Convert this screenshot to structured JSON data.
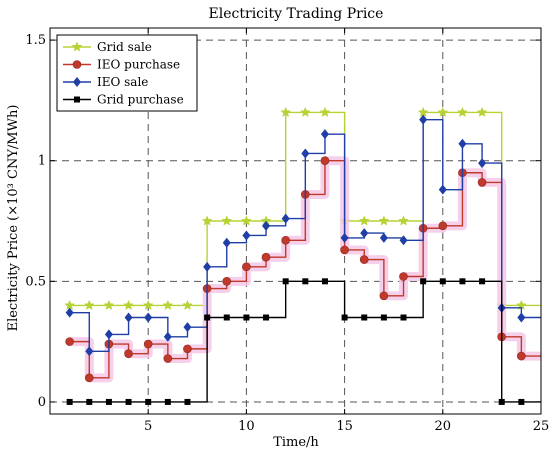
{
  "chart_data": {
    "type": "line",
    "step": true,
    "title": "Electricity Trading Price",
    "xlabel": "Time/h",
    "ylabel": "Electricity Price (×10³ CNY/MWh)",
    "xlim": [
      0,
      25
    ],
    "ylim": [
      -0.05,
      1.55
    ],
    "xticks": [
      5,
      10,
      15,
      20,
      25
    ],
    "yticks": [
      0,
      0.5,
      1,
      1.5
    ],
    "ytick_labels": [
      "0",
      "0.5",
      "1",
      "1.5"
    ],
    "grid": true,
    "legend_position": "top-left",
    "x": [
      1,
      2,
      3,
      4,
      5,
      6,
      7,
      8,
      9,
      10,
      11,
      12,
      13,
      14,
      15,
      16,
      17,
      18,
      19,
      20,
      21,
      22,
      23,
      24
    ],
    "series": [
      {
        "name": "Grid sale",
        "color": "#b5d334",
        "marker": "star",
        "values": [
          0.4,
          0.4,
          0.4,
          0.4,
          0.4,
          0.4,
          0.4,
          0.75,
          0.75,
          0.75,
          0.75,
          1.2,
          1.2,
          1.2,
          0.75,
          0.75,
          0.75,
          0.75,
          1.2,
          1.2,
          1.2,
          1.2,
          0.4,
          0.4
        ]
      },
      {
        "name": "IEO purchase",
        "color": "#c0392b",
        "marker": "circle",
        "values": [
          0.25,
          0.1,
          0.24,
          0.2,
          0.24,
          0.18,
          0.22,
          0.47,
          0.5,
          0.56,
          0.6,
          0.67,
          0.86,
          1.0,
          0.63,
          0.59,
          0.44,
          0.52,
          0.72,
          0.73,
          0.95,
          0.91,
          0.27,
          0.19
        ]
      },
      {
        "name": "IEO sale",
        "color": "#1f3fa6",
        "marker": "diamond",
        "values": [
          0.37,
          0.21,
          0.28,
          0.35,
          0.35,
          0.27,
          0.31,
          0.56,
          0.66,
          0.69,
          0.73,
          0.76,
          1.03,
          1.11,
          0.68,
          0.7,
          0.68,
          0.67,
          1.17,
          0.88,
          1.07,
          0.99,
          0.39,
          0.35
        ]
      },
      {
        "name": "Grid purchase",
        "color": "#000000",
        "marker": "square",
        "values": [
          0,
          0,
          0,
          0,
          0,
          0,
          0,
          0.35,
          0.35,
          0.35,
          0.35,
          0.5,
          0.5,
          0.5,
          0.35,
          0.35,
          0.35,
          0.35,
          0.5,
          0.5,
          0.5,
          0.5,
          0,
          0
        ]
      }
    ]
  }
}
